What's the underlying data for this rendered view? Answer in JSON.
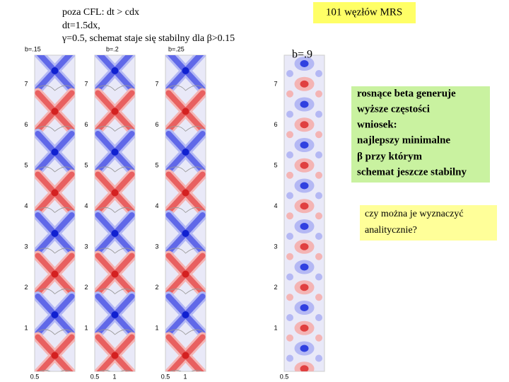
{
  "header": {
    "lines": [
      "poza CFL: dt > cdx",
      "dt=1.5dx,",
      "γ=0.5, schemat staje się stabilny dla β>0.15"
    ]
  },
  "badge": "101 węzłów MRS",
  "panels": [
    {
      "label": "b=.15",
      "yticks": [
        7,
        6,
        5,
        4,
        3,
        2,
        1
      ],
      "xticks": [
        0.5
      ]
    },
    {
      "label": "b=.2",
      "yticks": [
        7,
        6,
        5,
        4,
        3,
        2,
        1
      ],
      "xticks": [
        0.5,
        1
      ]
    },
    {
      "label": "b=.25",
      "yticks": [
        7,
        6,
        5,
        4,
        3,
        2,
        1
      ],
      "xticks": [
        0.5,
        1
      ]
    },
    {
      "label": "b=.9",
      "yticks": [
        7,
        6,
        5,
        4,
        3,
        2,
        1
      ],
      "xticks": [
        0.5
      ]
    }
  ],
  "conclusion": {
    "lines": [
      "rosnące beta generuje",
      "wyższe częstości",
      "wniosek:",
      "najlepszy minimalne",
      "β  przy którym",
      "schemat jeszcze stabilny"
    ]
  },
  "question": {
    "lines": [
      "czy można je wyznaczyć",
      "analitycznie?"
    ]
  }
}
